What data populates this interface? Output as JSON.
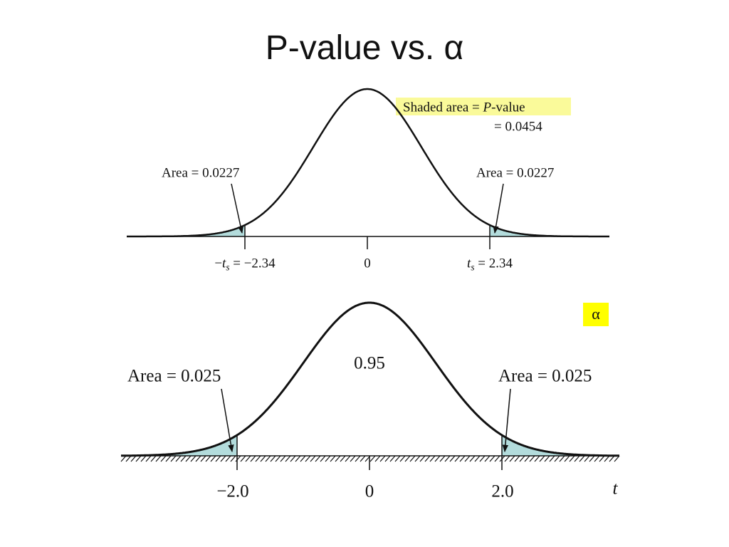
{
  "title": "P-value vs. α",
  "top_panel": {
    "shaded_label": [
      "Shaded area = ",
      "P",
      "-value"
    ],
    "p_value": "= 0.0454",
    "left_area": "Area = 0.0227",
    "right_area": "Area = 0.0227",
    "ticks": [
      [
        "−",
        "t",
        "s",
        " = −2.34"
      ],
      "0",
      [
        "t",
        "s",
        " = 2.34"
      ]
    ]
  },
  "bottom_panel": {
    "alpha": "α",
    "center_area": "0.95",
    "left_area": "Area = 0.025",
    "right_area": "Area = 0.025",
    "ticks": [
      "−2.0",
      "0",
      "2.0"
    ],
    "axis_label": "t"
  }
}
